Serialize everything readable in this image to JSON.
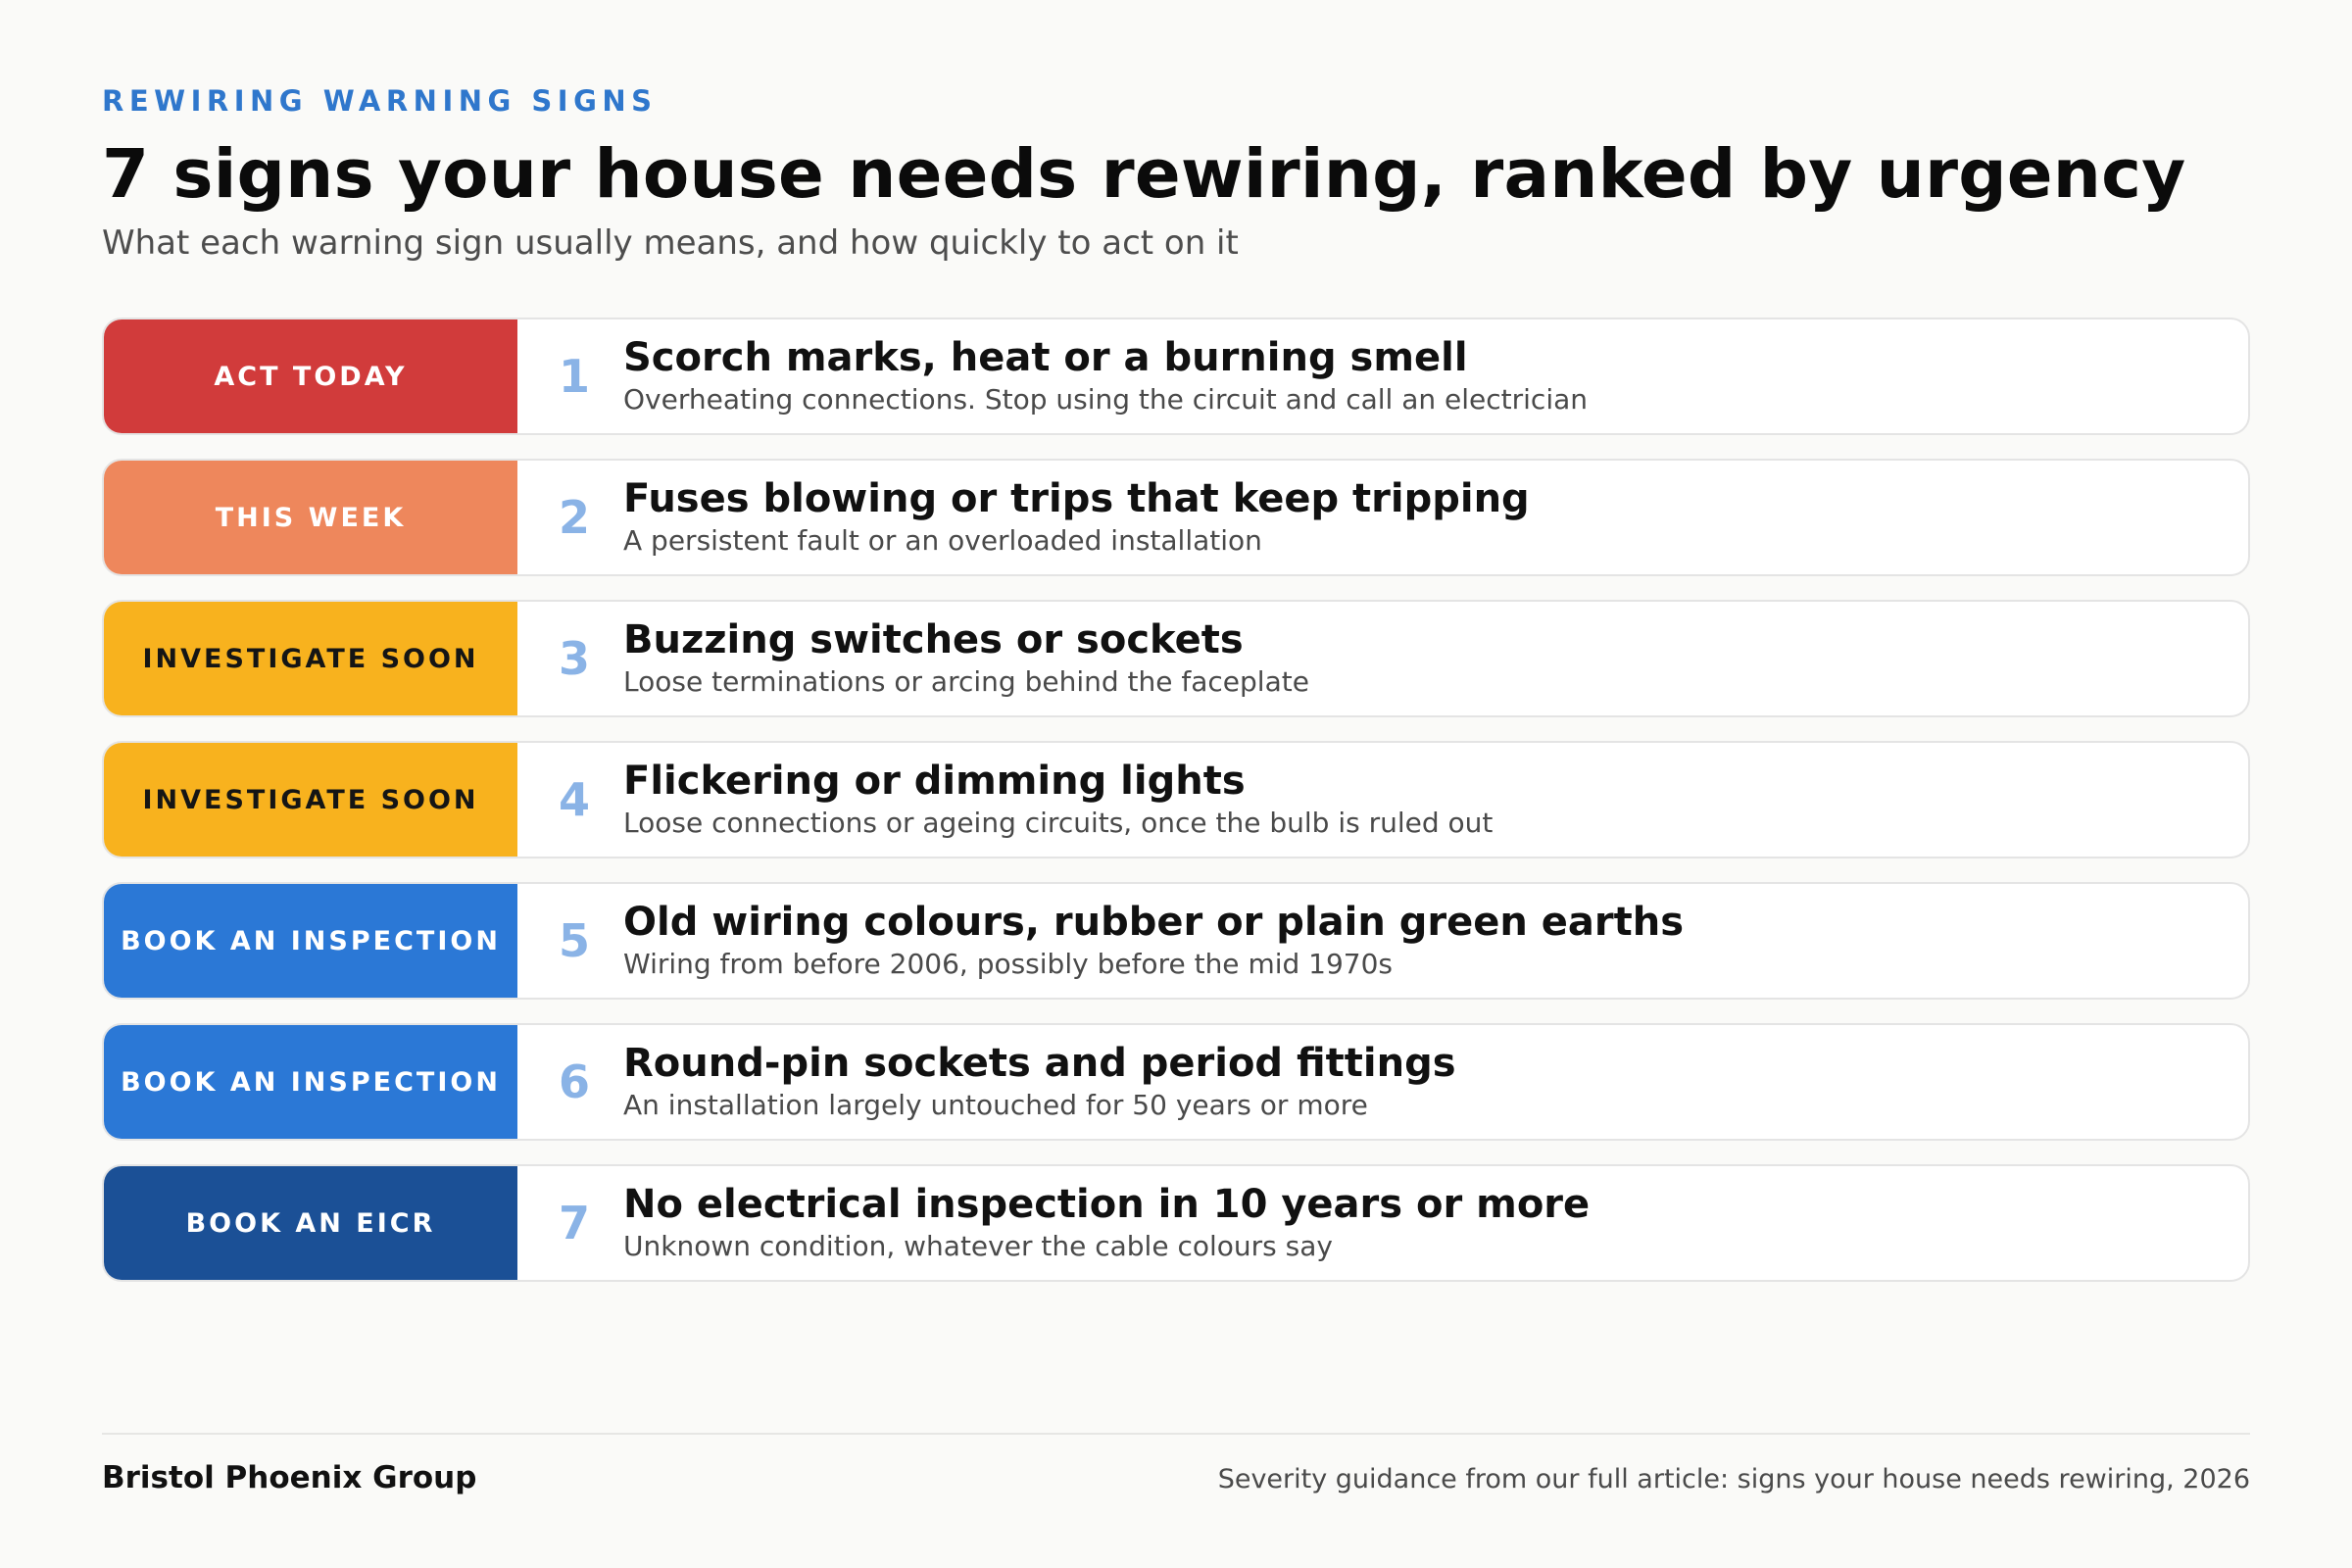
{
  "header": {
    "eyebrow": "REWIRING WARNING SIGNS",
    "title": "7 signs your house needs rewiring, ranked by urgency",
    "subtitle": "What each warning sign usually means, and how quickly to act on it"
  },
  "colors": {
    "accent": "#2f77cc",
    "act_today": "#d13b3b",
    "this_week": "#ee875c",
    "investigate_soon": "#f8b21e",
    "book_inspection": "#2b78d6",
    "book_eicr": "#1b5096",
    "number": "#8ab3e6"
  },
  "signs": [
    {
      "urgency": "ACT TODAY",
      "number": "1",
      "heading": "Scorch marks, heat or a burning smell",
      "description": "Overheating connections. Stop using the circuit and call an electrician"
    },
    {
      "urgency": "THIS WEEK",
      "number": "2",
      "heading": "Fuses blowing or trips that keep tripping",
      "description": "A persistent fault or an overloaded installation"
    },
    {
      "urgency": "INVESTIGATE SOON",
      "number": "3",
      "heading": "Buzzing switches or sockets",
      "description": "Loose terminations or arcing behind the faceplate"
    },
    {
      "urgency": "INVESTIGATE SOON",
      "number": "4",
      "heading": "Flickering or dimming lights",
      "description": "Loose connections or ageing circuits, once the bulb is ruled out"
    },
    {
      "urgency": "BOOK AN INSPECTION",
      "number": "5",
      "heading": "Old wiring colours, rubber or plain green earths",
      "description": "Wiring from before 2006, possibly before the mid 1970s"
    },
    {
      "urgency": "BOOK AN INSPECTION",
      "number": "6",
      "heading": "Round-pin sockets and period fittings",
      "description": "An installation largely untouched for 50 years or more"
    },
    {
      "urgency": "BOOK AN EICR",
      "number": "7",
      "heading": "No electrical inspection in 10 years or more",
      "description": "Unknown condition, whatever the cable colours say"
    }
  ],
  "footer": {
    "brand": "Bristol Phoenix Group",
    "note": "Severity guidance from our full article: signs your house needs rewiring, 2026"
  }
}
